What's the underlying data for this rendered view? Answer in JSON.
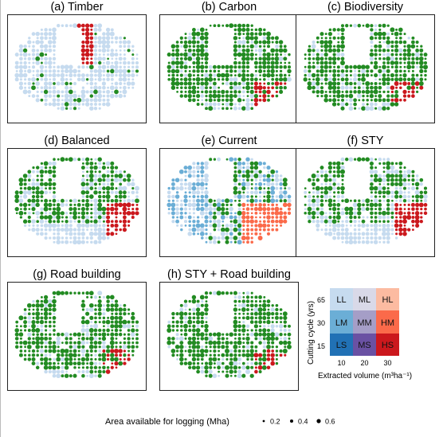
{
  "panels": [
    {
      "id": "a",
      "title": "(a) Timber"
    },
    {
      "id": "b",
      "title": "(b) Carbon"
    },
    {
      "id": "c",
      "title": "(c) Biodiversity"
    },
    {
      "id": "d",
      "title": "(d) Balanced"
    },
    {
      "id": "e",
      "title": "(e) Current"
    },
    {
      "id": "f",
      "title": "(f) STY"
    },
    {
      "id": "g",
      "title": "(g) Road building"
    },
    {
      "id": "h",
      "title": "(h) STY + Road building"
    }
  ],
  "legend": {
    "ylabel": "Cutting cycle (yrs)",
    "xlabel": "Extracted volume (m³ha⁻¹)",
    "y_ticks": [
      "65",
      "30",
      "15"
    ],
    "x_ticks": [
      "10",
      "20",
      "30"
    ],
    "cells": [
      [
        {
          "code": "LL",
          "color": "#c6dbef"
        },
        {
          "code": "ML",
          "color": "#d9d9e8"
        },
        {
          "code": "HL",
          "color": "#fcbba1"
        }
      ],
      [
        {
          "code": "LM",
          "color": "#6baed6"
        },
        {
          "code": "MM",
          "color": "#a59ec7"
        },
        {
          "code": "HM",
          "color": "#fb6a4a"
        }
      ],
      [
        {
          "code": "LS",
          "color": "#2171b5"
        },
        {
          "code": "MS",
          "color": "#6a51a3"
        },
        {
          "code": "HS",
          "color": "#cb181d"
        }
      ]
    ]
  },
  "size_legend": {
    "label": "Area available for logging (Mha)",
    "values": [
      "0.2",
      "0.4",
      "0.6"
    ]
  },
  "colors": {
    "green": "#228b22",
    "light_blue": "#c6dbef",
    "red": "#cb181d",
    "mid_blue": "#6baed6",
    "salmon": "#fb6a4a"
  },
  "chart_data": {
    "type": "scatter",
    "description_of_encoding": "",
    "series": []
  }
}
